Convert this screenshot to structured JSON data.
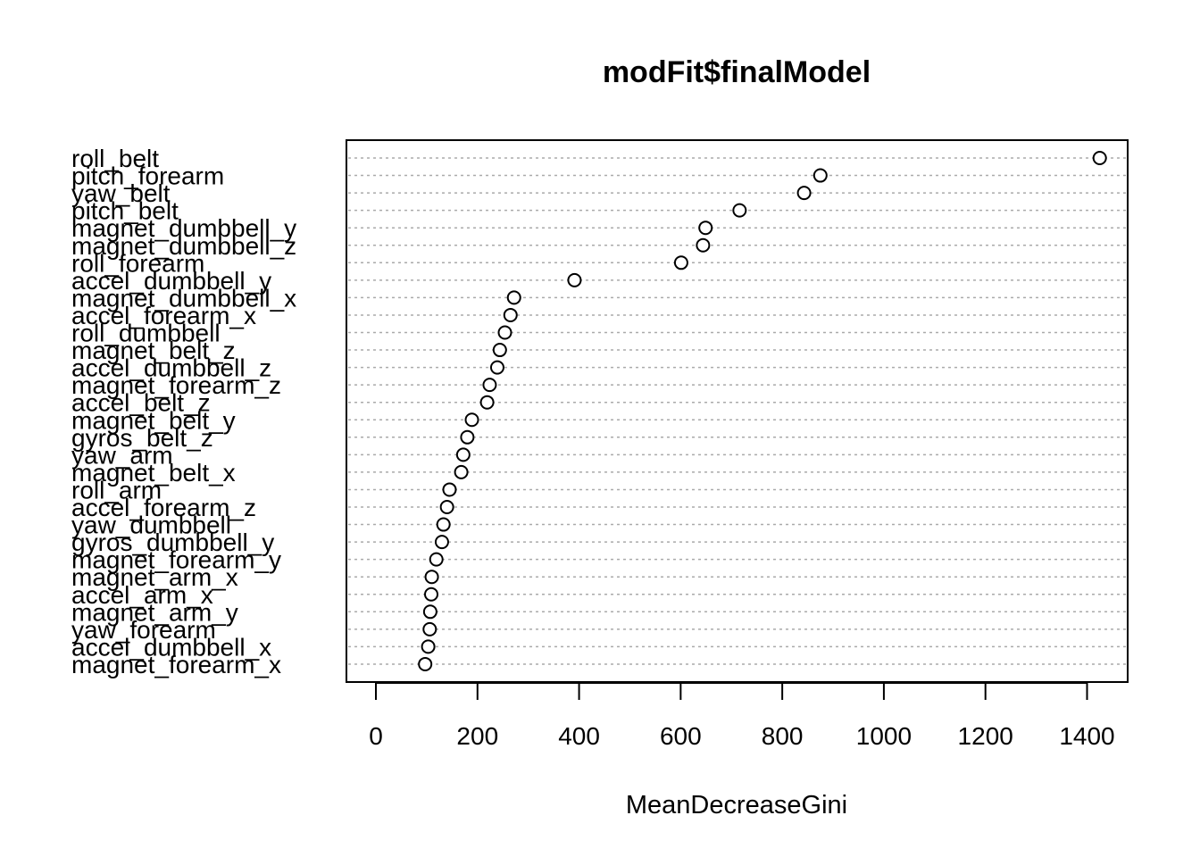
{
  "chart_data": {
    "type": "scatter",
    "title": "modFit$finalModel",
    "xlabel": "MeanDecreaseGini",
    "ylabel": "",
    "xlim": [
      -58,
      1480
    ],
    "x_ticks": [
      0,
      200,
      400,
      600,
      800,
      1000,
      1200,
      1400
    ],
    "grid": "dotted-horizontal",
    "marker": "open-circle",
    "colors": {
      "axis": "#000000",
      "grid": "#aaaaaa",
      "marker": "#000000",
      "background": "#ffffff"
    },
    "categories": [
      "roll_belt",
      "pitch_forearm",
      "yaw_belt",
      "pitch_belt",
      "magnet_dumbbell_y",
      "magnet_dumbbell_z",
      "roll_forearm",
      "accel_dumbbell_y",
      "magnet_dumbbell_x",
      "accel_forearm_x",
      "roll_dumbbell",
      "magnet_belt_z",
      "accel_dumbbell_z",
      "magnet_forearm_z",
      "accel_belt_z",
      "magnet_belt_y",
      "gyros_belt_z",
      "yaw_arm",
      "magnet_belt_x",
      "roll_arm",
      "accel_forearm_z",
      "yaw_dumbbell",
      "gyros_dumbbell_y",
      "magnet_forearm_y",
      "magnet_arm_x",
      "accel_arm_x",
      "magnet_arm_y",
      "yaw_forearm",
      "accel_dumbbell_x",
      "magnet_forearm_x"
    ],
    "values": [
      1425,
      875,
      843,
      716,
      649,
      644,
      601,
      391,
      272,
      265,
      254,
      244,
      239,
      224,
      219,
      189,
      180,
      172,
      168,
      145,
      140,
      133,
      130,
      119,
      110,
      109,
      107,
      106,
      103,
      97
    ]
  }
}
